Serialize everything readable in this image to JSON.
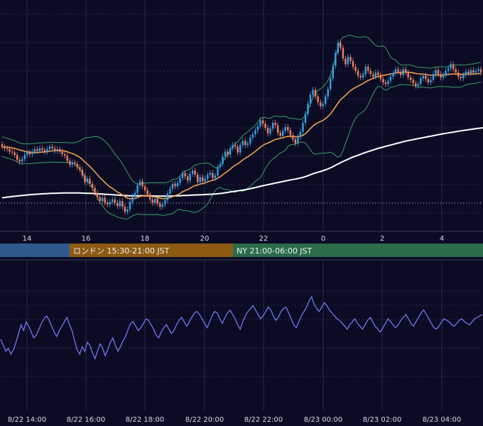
{
  "colors": {
    "background": "#0b0c24",
    "grid": "#2a2c48",
    "candle_up": "#36a3e6",
    "candle_down": "#f08063",
    "ma_short": "#f0a04b",
    "ma_long": "#ffffff",
    "bollinger": "#3f9b63",
    "oscillator": "#6f78f2",
    "session_tokyo": "#2e5b8b",
    "session_london": "#8d5a12",
    "session_ny": "#2b6c49",
    "price_line": "#c8c8d8"
  },
  "sessions": [
    {
      "label": "",
      "color": "#2e5b8b"
    },
    {
      "label": "ロンドン 15:30-21:00 JST",
      "color": "#8d5a12"
    },
    {
      "label": "NY 21:00-06:00 JST",
      "color": "#2b6c49"
    }
  ],
  "chart_data": [
    {
      "type": "candlestick",
      "title": "",
      "grid": true,
      "x_ticks": [
        "14",
        "16",
        "18",
        "20",
        "22",
        "0",
        "2",
        "4"
      ],
      "series": [
        {
          "kind": "candles",
          "close": [
            1.2,
            1.0,
            0.9,
            0.6,
            0.5,
            0.2,
            -0.4,
            -0.6,
            -0.3,
            0.2,
            0.5,
            0.3,
            0.6,
            0.9,
            0.7,
            1.0,
            0.8,
            0.6,
            0.9,
            1.2,
            1.0,
            0.7,
            0.9,
            0.6,
            0.3,
            0.1,
            -0.5,
            -1.0,
            -0.7,
            -0.9,
            -1.3,
            -1.6,
            -2.3,
            -3.1,
            -2.7,
            -3.3,
            -3.8,
            -4.4,
            -4.9,
            -5.4,
            -5.0,
            -5.6,
            -5.8,
            -5.5,
            -5.2,
            -5.6,
            -6.0,
            -5.4,
            -6.1,
            -6.7,
            -6.4,
            -5.5,
            -4.8,
            -4.4,
            -3.5,
            -3.0,
            -3.6,
            -4.1,
            -4.6,
            -5.2,
            -5.6,
            -5.1,
            -5.7,
            -6.1,
            -5.8,
            -5.3,
            -4.5,
            -3.9,
            -3.3,
            -3.6,
            -3.2,
            -2.6,
            -2.0,
            -2.4,
            -2.9,
            -2.1,
            -1.7,
            -2.2,
            -3.1,
            -2.5,
            -3.0,
            -2.7,
            -2.2,
            -2.0,
            -2.6,
            -2.3,
            -1.3,
            -0.9,
            0.0,
            0.6,
            0.2,
            1.0,
            1.4,
            1.2,
            0.5,
            1.4,
            1.9,
            1.4,
            1.6,
            2.3,
            2.7,
            3.2,
            3.7,
            4.4,
            4.0,
            3.5,
            2.8,
            3.4,
            4.1,
            3.8,
            2.9,
            2.5,
            3.1,
            3.6,
            3.2,
            2.6,
            2.1,
            1.6,
            2.4,
            3.0,
            4.1,
            5.2,
            6.4,
            7.5,
            8.1,
            7.3,
            6.6,
            6.1,
            6.4,
            7.3,
            8.2,
            9.5,
            11.0,
            12.6,
            13.8,
            13.2,
            11.9,
            11.2,
            12.1,
            11.6,
            10.9,
            10.4,
            9.8,
            9.6,
            10.0,
            10.9,
            10.4,
            10.0,
            9.7,
            10.2,
            9.9,
            9.4,
            9.0,
            8.8,
            9.2,
            9.7,
            10.1,
            10.6,
            10.3,
            9.9,
            10.6,
            10.2,
            9.6,
            9.3,
            8.9,
            8.6,
            8.8,
            9.5,
            9.8,
            9.4,
            9.0,
            9.3,
            10.0,
            10.5,
            10.0,
            9.6,
            9.9,
            10.4,
            10.7,
            11.2,
            10.6,
            10.2,
            9.7,
            9.5,
            9.9,
            10.3,
            10.1,
            10.5,
            10.2,
            10.4,
            10.6,
            10.2
          ]
        },
        {
          "kind": "ma_short",
          "values": [
            1.19,
            1.17,
            1.14,
            1.1,
            1.05,
            1.0,
            0.9,
            0.8,
            0.72,
            0.64,
            0.58,
            0.54,
            0.51,
            0.5,
            0.5,
            0.53,
            0.55,
            0.56,
            0.6,
            0.65,
            0.69,
            0.71,
            0.73,
            0.73,
            0.71,
            0.67,
            0.59,
            0.47,
            0.37,
            0.25,
            0.09,
            -0.1,
            -0.35,
            -0.66,
            -0.92,
            -1.21,
            -1.51,
            -1.85,
            -2.19,
            -2.55,
            -2.83,
            -3.14,
            -3.43,
            -3.67,
            -3.86,
            -4.08,
            -4.31,
            -4.46,
            -4.64,
            -4.86,
            -5.04,
            -5.11,
            -5.11,
            -5.08,
            -4.98,
            -4.84,
            -4.77,
            -4.74,
            -4.73,
            -4.78,
            -4.86,
            -4.88,
            -4.96,
            -5.05,
            -5.1,
            -5.11,
            -5.06,
            -4.97,
            -4.84,
            -4.74,
            -4.63,
            -4.47,
            -4.27,
            -4.12,
            -4.01,
            -3.84,
            -3.65,
            -3.51,
            -3.45,
            -3.34,
            -3.27,
            -3.18,
            -3.07,
            -2.96,
            -2.88,
            -2.79,
            -2.62,
            -2.44,
            -2.22,
            -1.98,
            -1.77,
            -1.52,
            -1.26,
            -1.04,
            -0.88,
            -0.65,
            -0.41,
            -0.21,
            -0.03,
            0.18,
            0.4,
            0.63,
            0.87,
            1.13,
            1.35,
            1.53,
            1.63,
            1.77,
            1.93,
            2.07,
            2.15,
            2.21,
            2.28,
            2.38,
            2.45,
            2.47,
            2.46,
            2.41,
            2.41,
            2.46,
            2.58,
            2.78,
            3.06,
            3.39,
            3.72,
            3.95,
            4.12,
            4.25,
            4.39,
            4.6,
            4.86,
            5.18,
            5.58,
            6.04,
            6.51,
            6.9,
            7.17,
            7.42,
            7.74,
            8.0,
            8.21,
            8.39,
            8.55,
            8.71,
            8.87,
            9.07,
            9.23,
            9.37,
            9.49,
            9.62,
            9.73,
            9.81,
            9.86,
            9.9,
            9.95,
            10.02,
            10.08,
            10.15,
            10.19,
            10.21,
            10.24,
            10.26,
            10.23,
            10.2,
            10.15,
            10.09,
            10.04,
            10.02,
            10.0,
            9.96,
            9.91,
            9.87,
            9.87,
            9.89,
            9.9,
            9.9,
            9.91,
            9.93,
            9.96,
            10.01,
            10.02,
            10.02,
            10.01,
            9.99,
            9.99,
            10.0,
            10.0,
            10.02,
            10.02,
            10.04,
            10.06,
            10.07
          ]
        },
        {
          "kind": "ma_long",
          "values": [
            -5.0,
            -4.96,
            -4.92,
            -4.88,
            -4.85,
            -4.81,
            -4.78,
            -4.75,
            -4.72,
            -4.69,
            -4.66,
            -4.63,
            -4.6,
            -4.58,
            -4.56,
            -4.54,
            -4.52,
            -4.5,
            -4.49,
            -4.47,
            -4.46,
            -4.45,
            -4.44,
            -4.43,
            -4.42,
            -4.42,
            -4.42,
            -4.42,
            -4.42,
            -4.42,
            -4.42,
            -4.42,
            -4.43,
            -4.44,
            -4.45,
            -4.46,
            -4.47,
            -4.49,
            -4.51,
            -4.53,
            -4.55,
            -4.57,
            -4.59,
            -4.61,
            -4.63,
            -4.65,
            -4.67,
            -4.69,
            -4.71,
            -4.73,
            -4.74,
            -4.75,
            -4.76,
            -4.76,
            -4.76,
            -4.76,
            -4.76,
            -4.76,
            -4.76,
            -4.77,
            -4.78,
            -4.78,
            -4.79,
            -4.8,
            -4.8,
            -4.8,
            -4.8,
            -4.79,
            -4.78,
            -4.77,
            -4.76,
            -4.75,
            -4.73,
            -4.72,
            -4.71,
            -4.69,
            -4.67,
            -4.66,
            -4.65,
            -4.64,
            -4.63,
            -4.61,
            -4.59,
            -4.57,
            -4.56,
            -4.54,
            -4.51,
            -4.48,
            -4.44,
            -4.39,
            -4.35,
            -4.3,
            -4.25,
            -4.2,
            -4.16,
            -4.11,
            -4.06,
            -4.01,
            -3.96,
            -3.9,
            -3.83,
            -3.76,
            -3.69,
            -3.61,
            -3.54,
            -3.47,
            -3.41,
            -3.35,
            -3.28,
            -3.21,
            -3.15,
            -3.09,
            -3.03,
            -2.96,
            -2.9,
            -2.84,
            -2.78,
            -2.73,
            -2.67,
            -2.6,
            -2.52,
            -2.43,
            -2.32,
            -2.2,
            -2.09,
            -1.99,
            -1.9,
            -1.81,
            -1.71,
            -1.61,
            -1.5,
            -1.37,
            -1.22,
            -1.05,
            -0.89,
            -0.74,
            -0.6,
            -0.46,
            -0.32,
            -0.19,
            -0.06,
            0.06,
            0.17,
            0.28,
            0.39,
            0.5,
            0.6,
            0.7,
            0.8,
            0.9,
            0.99,
            1.08,
            1.16,
            1.24,
            1.32,
            1.4,
            1.48,
            1.56,
            1.64,
            1.72,
            1.8,
            1.87,
            1.94,
            2.0,
            2.06,
            2.12,
            2.18,
            2.24,
            2.3,
            2.36,
            2.42,
            2.48,
            2.54,
            2.6,
            2.66,
            2.72,
            2.77,
            2.82,
            2.87,
            2.92,
            2.97,
            3.02,
            3.07,
            3.12,
            3.17,
            3.22,
            3.26,
            3.3,
            3.34,
            3.38,
            3.42,
            3.46,
            3.5
          ]
        }
      ]
    },
    {
      "type": "line",
      "title": "",
      "grid": true,
      "x_ticks": [
        "8/22 14:00",
        "8/22 16:00",
        "8/22 18:00",
        "8/22 20:00",
        "8/22 22:00",
        "8/23 00:00",
        "8/23 02:00",
        "8/23 04:00"
      ],
      "series": [
        {
          "values": [
            48,
            44,
            40,
            42,
            38,
            41,
            46,
            52,
            58,
            54,
            60,
            57,
            53,
            49,
            51,
            55,
            59,
            62,
            64,
            61,
            57,
            53,
            50,
            54,
            57,
            60,
            63,
            58,
            54,
            47,
            41,
            38,
            43,
            40,
            46,
            44,
            39,
            35,
            40,
            45,
            42,
            37,
            41,
            46,
            49,
            44,
            40,
            43,
            47,
            50,
            55,
            59,
            60,
            57,
            54,
            56,
            59,
            62,
            61,
            58,
            55,
            51,
            49,
            53,
            56,
            58,
            55,
            52,
            54,
            58,
            61,
            63,
            60,
            57,
            60,
            63,
            66,
            67,
            65,
            62,
            59,
            56,
            60,
            64,
            67,
            66,
            62,
            59,
            63,
            66,
            68,
            65,
            62,
            58,
            55,
            60,
            64,
            67,
            69,
            71,
            68,
            65,
            62,
            64,
            67,
            70,
            68,
            64,
            61,
            63,
            67,
            69,
            70,
            66,
            62,
            58,
            56,
            60,
            64,
            67,
            70,
            74,
            77,
            72,
            69,
            67,
            70,
            73,
            71,
            68,
            66,
            64,
            62,
            61,
            59,
            57,
            55,
            58,
            60,
            62,
            59,
            57,
            55,
            58,
            61,
            63,
            60,
            57,
            55,
            53,
            56,
            59,
            62,
            60,
            58,
            56,
            58,
            61,
            63,
            65,
            62,
            59,
            57,
            60,
            63,
            66,
            68,
            65,
            62,
            59,
            56,
            55,
            57,
            60,
            62,
            61,
            60,
            58,
            57,
            59,
            61,
            62,
            60,
            59,
            58,
            60,
            62,
            63,
            64,
            65
          ]
        }
      ]
    }
  ]
}
